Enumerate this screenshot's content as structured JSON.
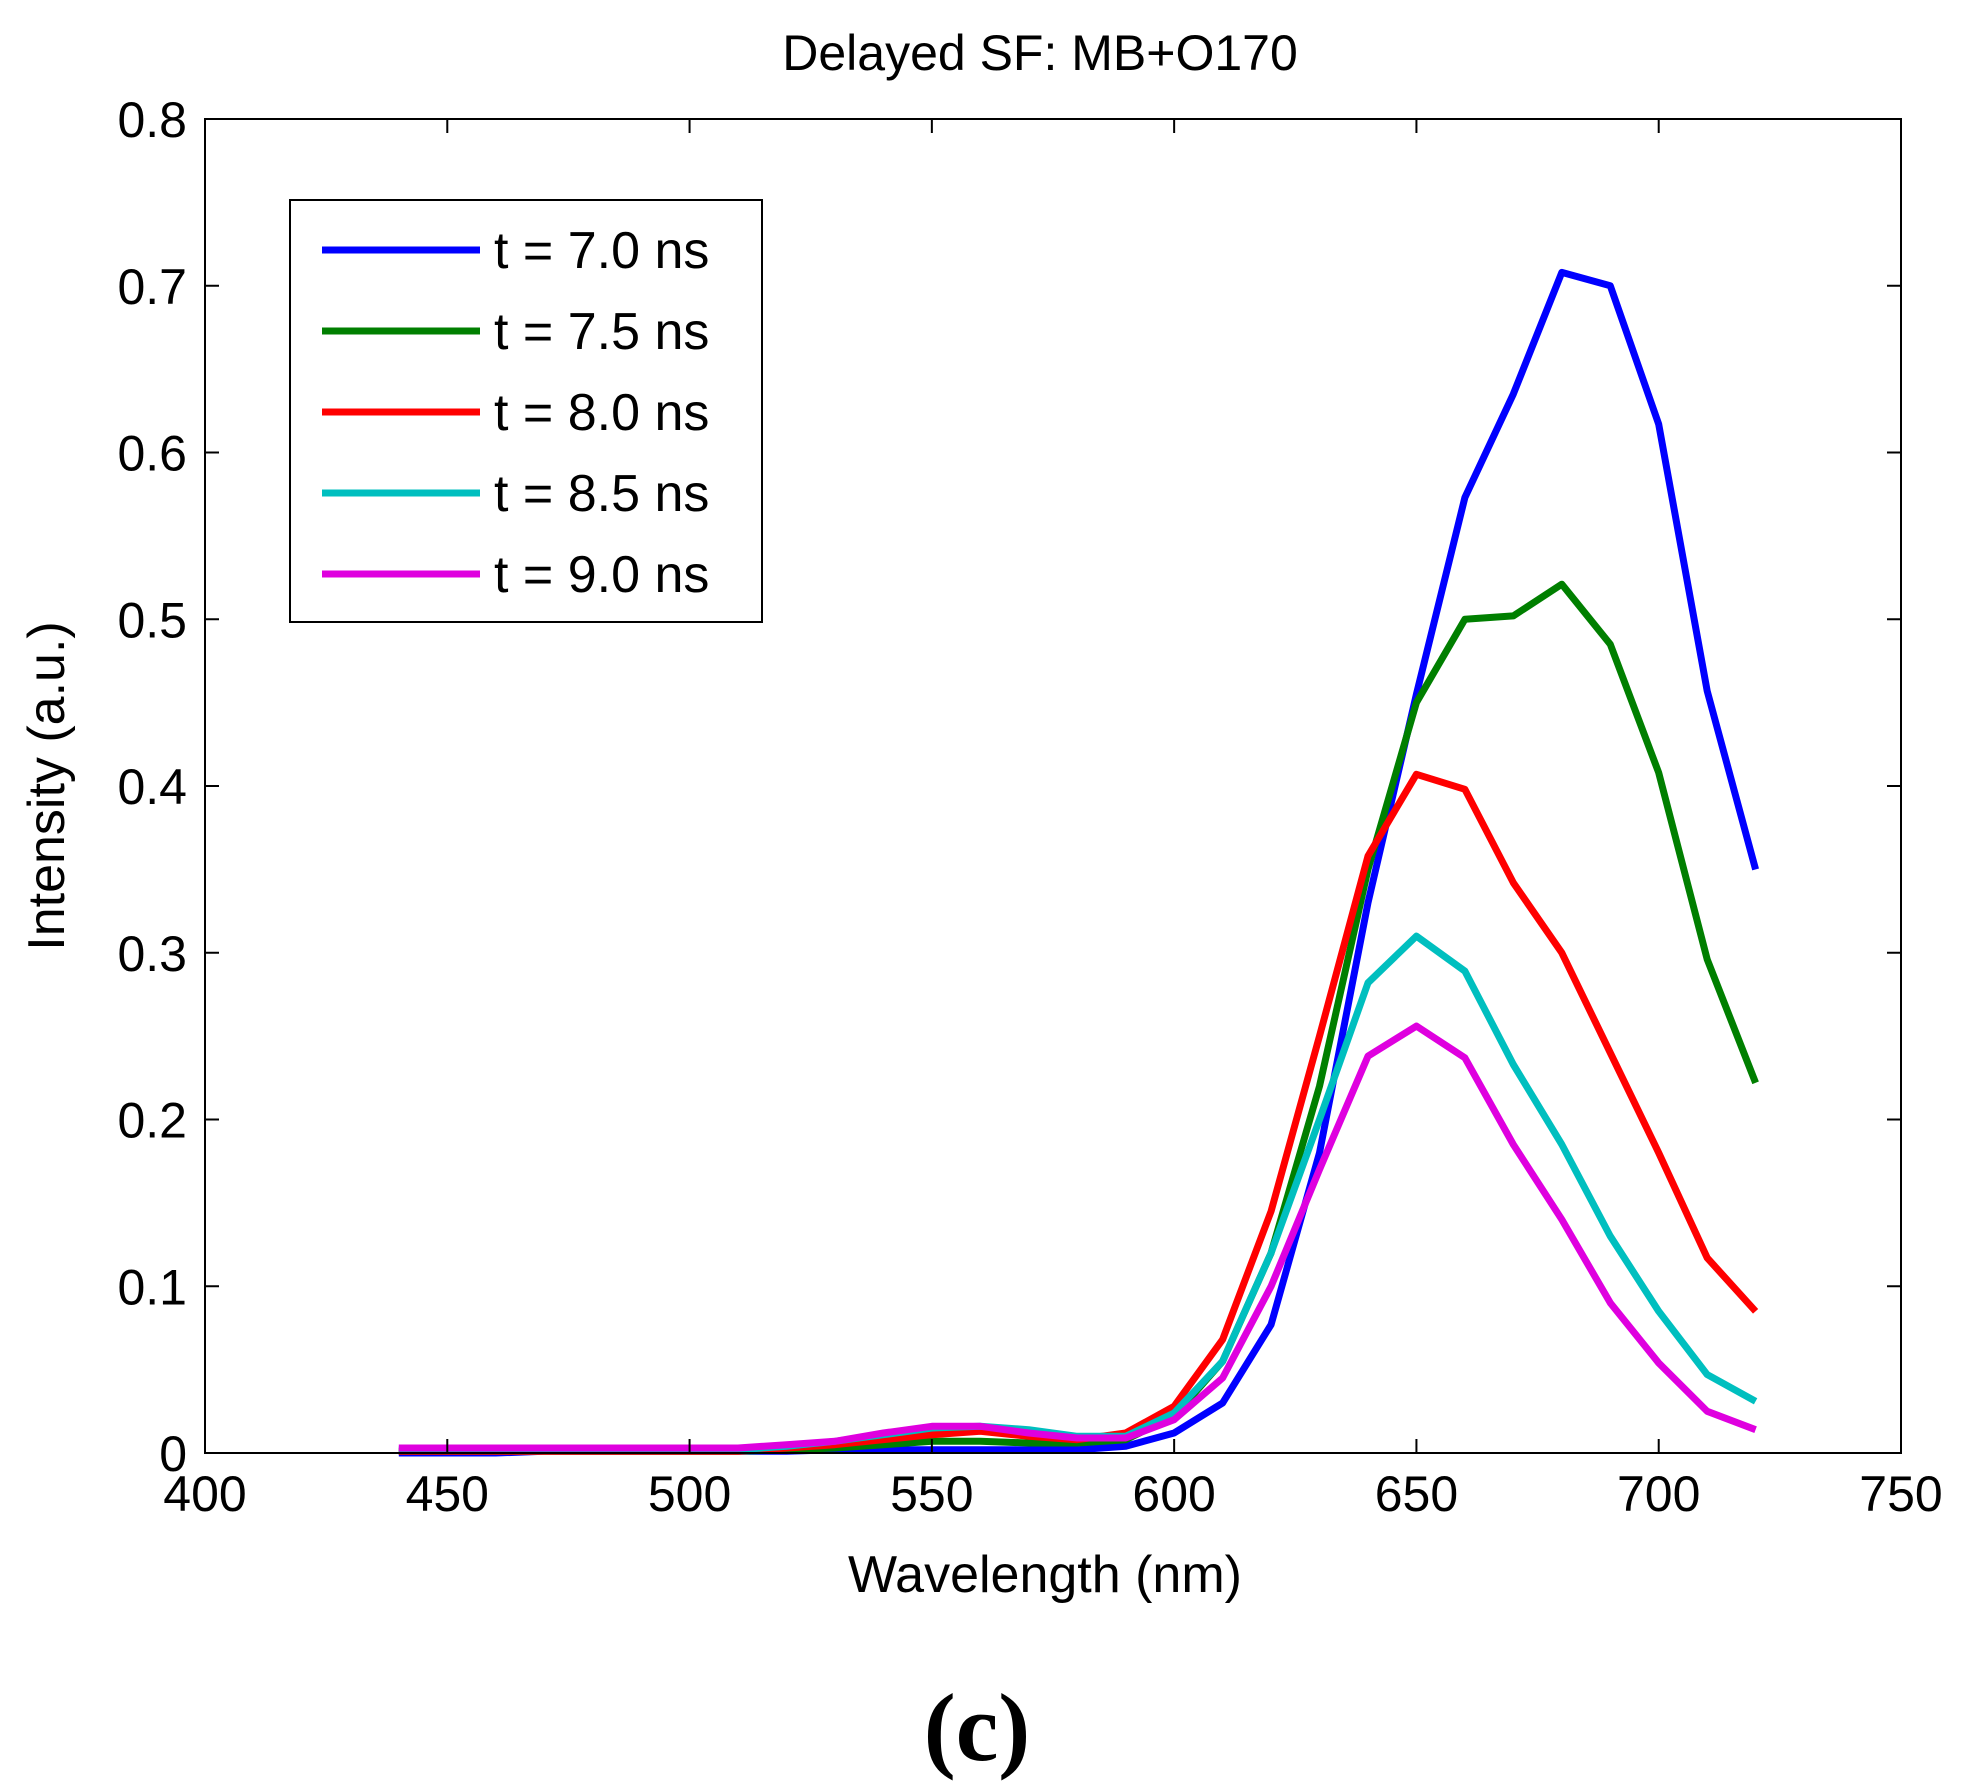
{
  "chart_data": {
    "type": "line",
    "title": "Delayed SF: MB+O170",
    "xlabel": "Wavelength (nm)",
    "ylabel": "Intensity (a.u.)",
    "xlim": [
      400,
      750
    ],
    "ylim": [
      0,
      0.8
    ],
    "xticks": [
      "400",
      "450",
      "500",
      "550",
      "600",
      "650",
      "700",
      "750"
    ],
    "yticks": [
      "0",
      "0.1",
      "0.2",
      "0.3",
      "0.4",
      "0.5",
      "0.6",
      "0.7",
      "0.8"
    ],
    "grid": false,
    "legend_position": "top-left",
    "panel_label": "(c)",
    "x": [
      440,
      450,
      460,
      470,
      480,
      490,
      500,
      510,
      520,
      530,
      540,
      550,
      560,
      570,
      580,
      590,
      600,
      610,
      620,
      630,
      640,
      650,
      660,
      670,
      680,
      690,
      700,
      710,
      720
    ],
    "series": [
      {
        "name": "t = 7.0 ns",
        "color": "#0000ff",
        "values": [
          0.0,
          0.0,
          0.0,
          0.001,
          0.001,
          0.001,
          0.001,
          0.001,
          0.001,
          0.002,
          0.002,
          0.002,
          0.002,
          0.002,
          0.002,
          0.004,
          0.012,
          0.03,
          0.077,
          0.18,
          0.33,
          0.455,
          0.573,
          0.635,
          0.708,
          0.7,
          0.617,
          0.457,
          0.35
        ]
      },
      {
        "name": "t = 7.5 ns",
        "color": "#007f00",
        "values": [
          0.001,
          0.001,
          0.001,
          0.001,
          0.001,
          0.001,
          0.001,
          0.001,
          0.002,
          0.003,
          0.005,
          0.007,
          0.007,
          0.006,
          0.006,
          0.008,
          0.022,
          0.055,
          0.12,
          0.22,
          0.35,
          0.45,
          0.5,
          0.502,
          0.521,
          0.485,
          0.408,
          0.296,
          0.222
        ]
      },
      {
        "name": "t = 8.0 ns",
        "color": "#ff0000",
        "values": [
          0.001,
          0.001,
          0.001,
          0.001,
          0.001,
          0.001,
          0.001,
          0.001,
          0.003,
          0.005,
          0.008,
          0.011,
          0.013,
          0.01,
          0.008,
          0.012,
          0.028,
          0.068,
          0.145,
          0.25,
          0.358,
          0.407,
          0.398,
          0.342,
          0.3,
          0.24,
          0.18,
          0.117,
          0.085
        ]
      },
      {
        "name": "t = 8.5 ns",
        "color": "#00bfbf",
        "values": [
          0.002,
          0.002,
          0.002,
          0.002,
          0.002,
          0.002,
          0.002,
          0.002,
          0.004,
          0.007,
          0.011,
          0.015,
          0.016,
          0.014,
          0.01,
          0.01,
          0.024,
          0.055,
          0.12,
          0.2,
          0.282,
          0.31,
          0.289,
          0.233,
          0.185,
          0.13,
          0.085,
          0.047,
          0.031
        ]
      },
      {
        "name": "t = 9.0 ns",
        "color": "#df00df",
        "values": [
          0.003,
          0.003,
          0.003,
          0.003,
          0.003,
          0.003,
          0.003,
          0.003,
          0.005,
          0.007,
          0.012,
          0.016,
          0.016,
          0.012,
          0.009,
          0.009,
          0.02,
          0.045,
          0.1,
          0.17,
          0.238,
          0.256,
          0.237,
          0.185,
          0.14,
          0.09,
          0.054,
          0.025,
          0.014
        ]
      }
    ]
  }
}
